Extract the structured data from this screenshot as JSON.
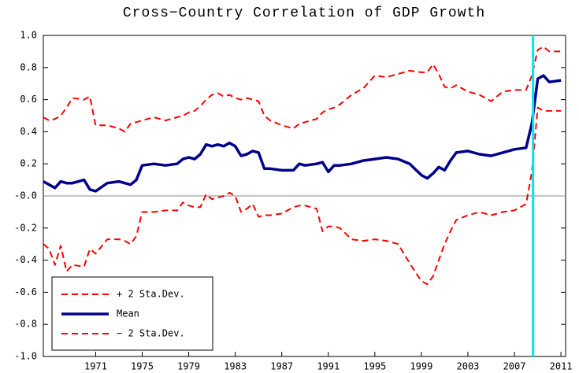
{
  "chart_data": {
    "type": "line",
    "title": "Cross−Country Correlation of GDP Growth",
    "x": [
      1966.5,
      1967,
      1967.5,
      1968,
      1968.5,
      1969,
      1970,
      1970.5,
      1971,
      1972,
      1973,
      1973.5,
      1974,
      1974.5,
      1975,
      1976,
      1977,
      1978,
      1978.5,
      1979,
      1979.5,
      1980,
      1980.5,
      1981,
      1981.5,
      1982,
      1982.5,
      1983,
      1983.5,
      1984,
      1984.5,
      1985,
      1985.5,
      1986,
      1987,
      1988,
      1988.5,
      1989,
      1990,
      1990.5,
      1991,
      1991.5,
      1992,
      1993,
      1994,
      1995,
      1996,
      1997,
      1998,
      1999,
      1999.5,
      2000,
      2000.5,
      2001,
      2001.5,
      2002,
      2003,
      2004,
      2005,
      2006,
      2007,
      2008,
      2008.5,
      2009,
      2009.5,
      2010,
      2011
    ],
    "series": [
      {
        "name": "+ 2 Sta.Dev.",
        "color": "#ff0000",
        "dashed": true,
        "values": [
          0.49,
          0.47,
          0.48,
          0.5,
          0.55,
          0.61,
          0.6,
          0.62,
          0.44,
          0.44,
          0.42,
          0.4,
          0.45,
          0.46,
          0.47,
          0.49,
          0.47,
          0.49,
          0.5,
          0.52,
          0.53,
          0.56,
          0.6,
          0.63,
          0.64,
          0.62,
          0.63,
          0.61,
          0.6,
          0.61,
          0.6,
          0.59,
          0.5,
          0.47,
          0.44,
          0.42,
          0.45,
          0.46,
          0.48,
          0.52,
          0.54,
          0.55,
          0.57,
          0.63,
          0.67,
          0.75,
          0.74,
          0.76,
          0.78,
          0.77,
          0.77,
          0.82,
          0.76,
          0.68,
          0.67,
          0.69,
          0.65,
          0.63,
          0.59,
          0.65,
          0.66,
          0.66,
          0.75,
          0.91,
          0.93,
          0.9,
          0.9
        ]
      },
      {
        "name": "Mean",
        "color": "#00008b",
        "dashed": false,
        "values": [
          0.09,
          0.07,
          0.05,
          0.09,
          0.08,
          0.08,
          0.1,
          0.04,
          0.03,
          0.08,
          0.09,
          0.08,
          0.07,
          0.1,
          0.19,
          0.2,
          0.19,
          0.2,
          0.23,
          0.24,
          0.23,
          0.26,
          0.32,
          0.31,
          0.32,
          0.31,
          0.33,
          0.31,
          0.25,
          0.26,
          0.28,
          0.27,
          0.17,
          0.17,
          0.16,
          0.16,
          0.2,
          0.19,
          0.2,
          0.21,
          0.15,
          0.19,
          0.19,
          0.2,
          0.22,
          0.23,
          0.24,
          0.23,
          0.2,
          0.13,
          0.11,
          0.14,
          0.18,
          0.16,
          0.22,
          0.27,
          0.28,
          0.26,
          0.25,
          0.27,
          0.29,
          0.3,
          0.45,
          0.73,
          0.75,
          0.71,
          0.72
        ]
      },
      {
        "name": "− 2 Sta.Dev.",
        "color": "#ff0000",
        "dashed": true,
        "values": [
          -0.3,
          -0.33,
          -0.43,
          -0.31,
          -0.47,
          -0.43,
          -0.44,
          -0.33,
          -0.36,
          -0.27,
          -0.27,
          -0.28,
          -0.3,
          -0.25,
          -0.1,
          -0.1,
          -0.09,
          -0.09,
          -0.04,
          -0.06,
          -0.07,
          -0.07,
          0.01,
          -0.02,
          -0.01,
          0.0,
          0.02,
          0.0,
          -0.1,
          -0.08,
          -0.05,
          -0.13,
          -0.12,
          -0.12,
          -0.11,
          -0.07,
          -0.06,
          -0.06,
          -0.08,
          -0.22,
          -0.19,
          -0.19,
          -0.2,
          -0.27,
          -0.28,
          -0.27,
          -0.28,
          -0.3,
          -0.42,
          -0.53,
          -0.55,
          -0.5,
          -0.4,
          -0.3,
          -0.22,
          -0.15,
          -0.12,
          -0.1,
          -0.12,
          -0.1,
          -0.09,
          -0.05,
          0.15,
          0.55,
          0.53,
          0.53,
          0.53
        ]
      }
    ],
    "xlim": [
      1966.5,
      2011.4
    ],
    "xticks": [
      1971,
      1975,
      1979,
      1983,
      1987,
      1991,
      1995,
      1999,
      2003,
      2007,
      2011
    ],
    "ylim": [
      -1.0,
      1.0
    ],
    "yticks": [
      {
        "value": -1.0,
        "label": "-1.0"
      },
      -0.8,
      -0.6,
      -0.4,
      -0.2,
      {
        "value": 0,
        "label": "-0.0"
      },
      0.2,
      0.4,
      0.6,
      0.8,
      {
        "value": 1.0,
        "label": "1.0"
      }
    ],
    "vline": {
      "x": 2008.6,
      "color": "#00e5ee"
    },
    "legend": "lower left"
  }
}
